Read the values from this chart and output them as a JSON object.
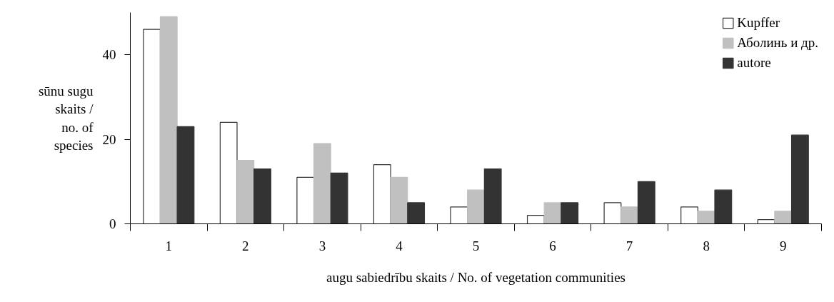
{
  "chart_data": {
    "type": "bar",
    "xlabel": "augu sabiedrību skaits / No. of vegetation communities",
    "ylabel": "sūnu sugu skaits / no. of species",
    "categories": [
      "1",
      "2",
      "3",
      "4",
      "5",
      "6",
      "7",
      "8",
      "9"
    ],
    "series": [
      {
        "name": "Kupffer",
        "color": "#ffffff",
        "values": [
          46,
          24,
          11,
          14,
          4,
          2,
          5,
          4,
          1
        ]
      },
      {
        "name": "Аболинь и др.",
        "color": "#c0c0c0",
        "values": [
          49,
          15,
          19,
          11,
          8,
          5,
          4,
          3,
          3
        ]
      },
      {
        "name": "autore",
        "color": "#333333",
        "values": [
          23,
          13,
          12,
          5,
          13,
          5,
          10,
          8,
          21
        ]
      }
    ],
    "ylim": [
      0,
      50
    ],
    "yticks": [
      0,
      20,
      40
    ],
    "grid": false,
    "legend": "top right"
  }
}
